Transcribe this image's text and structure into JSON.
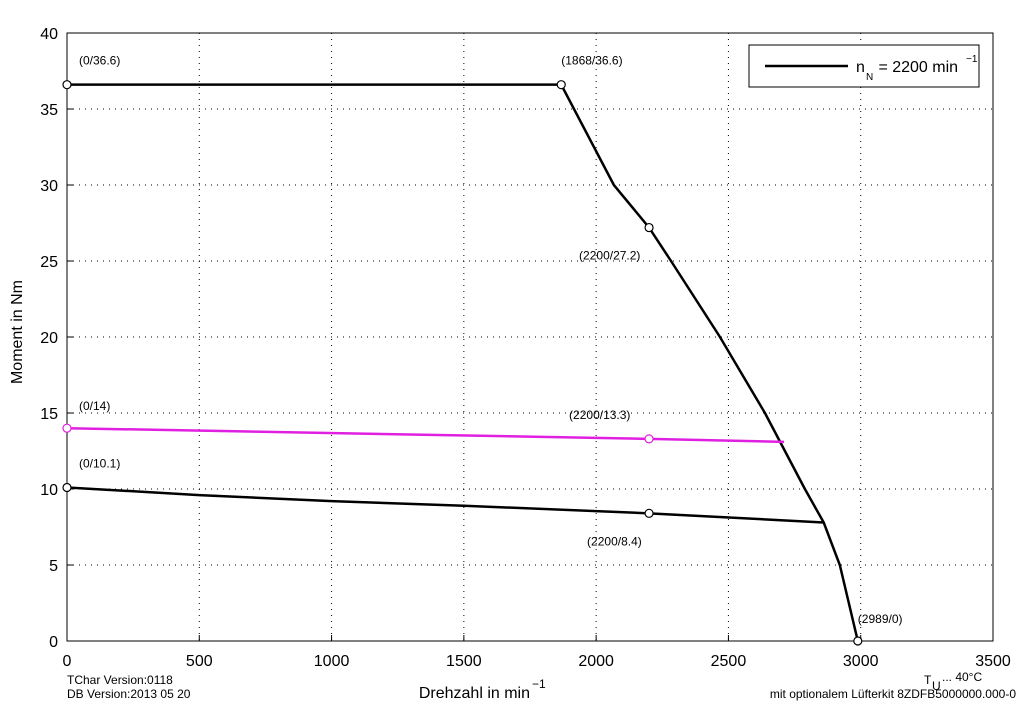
{
  "chart_data": {
    "type": "line",
    "xlabel": "Drehzahl in min",
    "xlabel_sup": "−1",
    "ylabel": "Moment in Nm",
    "xlim": [
      0,
      3500
    ],
    "ylim": [
      0,
      40
    ],
    "xticks": [
      0,
      500,
      1000,
      1500,
      2000,
      2500,
      3000,
      3500
    ],
    "yticks": [
      0,
      5,
      10,
      15,
      20,
      25,
      30,
      35,
      40
    ],
    "grid": true,
    "legend_position": "upper right",
    "series": [
      {
        "name": "n",
        "name_sub": "N",
        "name_rest": " = 2200 min",
        "name_sup": "−1",
        "color": "#000000",
        "x": [
          0,
          1868,
          2067,
          2200,
          2283,
          2468,
          2638,
          2789,
          2860,
          2921,
          2989
        ],
        "values": [
          36.6,
          36.6,
          30,
          27.2,
          25,
          20,
          15,
          10,
          7.8,
          5,
          0
        ],
        "labels": [
          "(0/36.6)",
          "(1868/36.6)",
          null,
          "(2200/27.2)",
          null,
          null,
          null,
          null,
          null,
          null,
          "(2989/0)"
        ]
      },
      {
        "color": "#e020e0",
        "x": [
          0,
          2200,
          2710
        ],
        "values": [
          14,
          13.3,
          13.1
        ],
        "labels": [
          "(0/14)",
          "(2200/13.3)",
          null
        ]
      },
      {
        "color": "#000000",
        "x": [
          0,
          500,
          1000,
          1500,
          2200,
          2860
        ],
        "values": [
          10.1,
          9.6,
          9.2,
          8.9,
          8.4,
          7.8
        ],
        "labels": [
          "(0/10.1)",
          null,
          null,
          null,
          "(2200/8.4)",
          null
        ]
      }
    ],
    "footer_left": [
      "TChar Version:0118",
      "DB Version:2013 05 20"
    ],
    "footer_temp": {
      "main": "T",
      "sub": "U",
      "rest": " ... 40°C"
    },
    "footer_option": "mit optionalem Lüfterkit 8ZDFB5000000.000-0",
    "footer_option_color": "#e020e0"
  }
}
